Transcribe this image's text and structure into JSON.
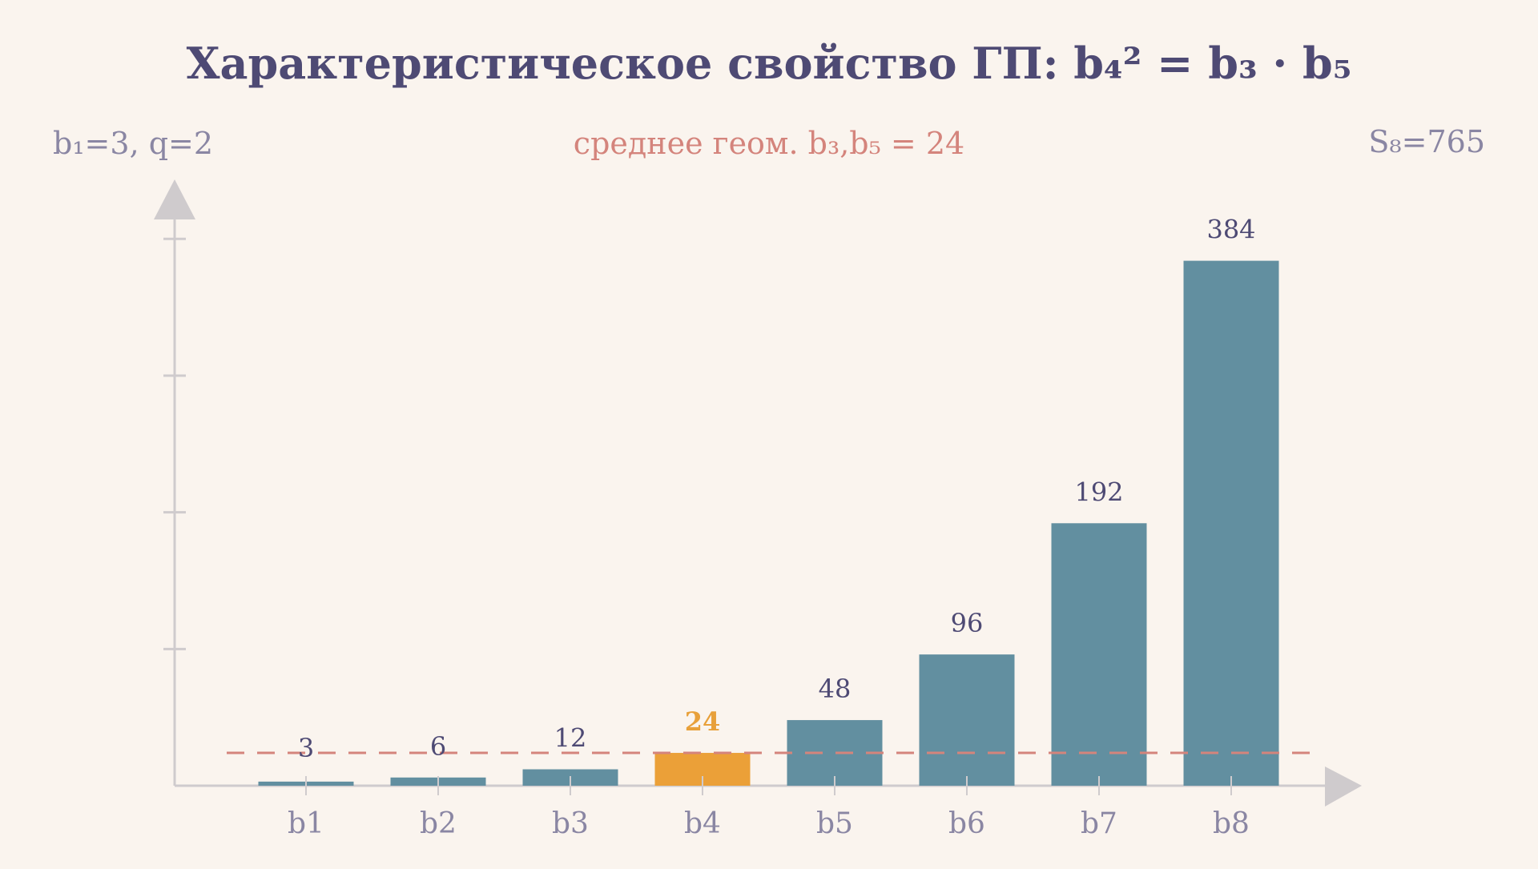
{
  "colors": {
    "background": "#faf4ee",
    "bar": "#628fa0",
    "highlight_bar": "#eba038",
    "title": "#4e4a74",
    "annotation": "#d4847c",
    "muted_text": "#8a86a3",
    "axis": "#cfcbcd"
  },
  "chart_data": {
    "type": "bar",
    "title": "Характеристическое свойство ГП: b₄² = b₃ · b₅",
    "subtitle_left": "b₁=3,  q=2",
    "subtitle_center": "среднее геом.  b₃,b₅ = 24",
    "subtitle_right": "S₈=765",
    "categories": [
      "b1",
      "b2",
      "b3",
      "b4",
      "b5",
      "b6",
      "b7",
      "b8"
    ],
    "values": [
      3,
      6,
      12,
      24,
      48,
      96,
      192,
      384
    ],
    "value_labels": [
      "3",
      "6",
      "12",
      "24",
      "48",
      "96",
      "192",
      "384"
    ],
    "highlight_index": 3,
    "reference_line": {
      "value": 24,
      "style": "dashed"
    },
    "ylim": [
      0,
      440
    ],
    "y_ticks": [
      100,
      200,
      300,
      400
    ],
    "xlabel": "",
    "ylabel": "",
    "grid": false,
    "legend": "none"
  }
}
